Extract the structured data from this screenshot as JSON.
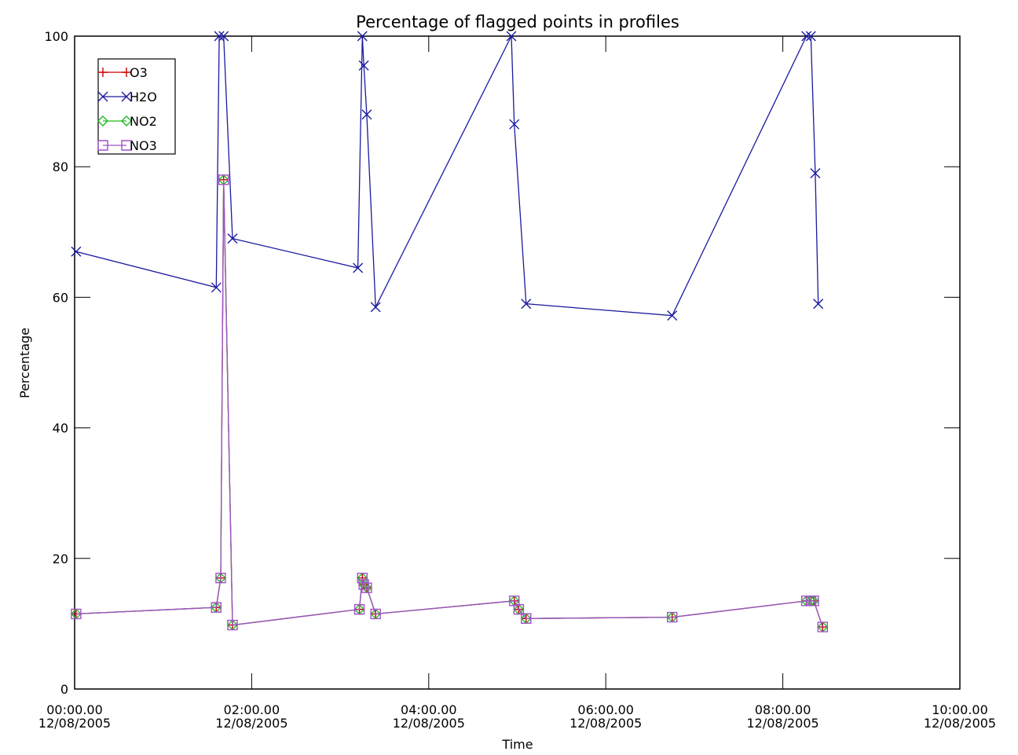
{
  "chart_data": {
    "type": "line",
    "title": "Percentage of flagged points in profiles",
    "xlabel": "Time",
    "ylabel": "Percentage",
    "ylim": [
      0,
      100
    ],
    "xlim": [
      "2005-12-08T00:00:00",
      "2005-12-08T10:00:00"
    ],
    "grid": false,
    "legend_position": "top-left",
    "y_ticks": [
      "0",
      "20",
      "40",
      "60",
      "80",
      "100"
    ],
    "x_ticks": [
      {
        "time": "2005-12-08T00:00:00",
        "line1": "00:00.00",
        "line2": "12/08/2005"
      },
      {
        "time": "2005-12-08T02:00:00",
        "line1": "02:00.00",
        "line2": "12/08/2005"
      },
      {
        "time": "2005-12-08T04:00:00",
        "line1": "04:00.00",
        "line2": "12/08/2005"
      },
      {
        "time": "2005-12-08T06:00:00",
        "line1": "06:00.00",
        "line2": "12/08/2005"
      },
      {
        "time": "2005-12-08T08:00:00",
        "line1": "08:00.00",
        "line2": "12/08/2005"
      },
      {
        "time": "2005-12-08T10:00:00",
        "line1": "10:00.00",
        "line2": "12/08/2005"
      }
    ],
    "series": [
      {
        "name": "O3",
        "color": "#cc0000",
        "marker": "plus",
        "x": [
          "00:01",
          "01:36",
          "01:39",
          "01:41",
          "01:47",
          "03:13",
          "03:15",
          "03:16",
          "03:18",
          "03:24",
          "04:58",
          "05:01",
          "05:06",
          "06:45",
          "08:16",
          "08:19",
          "08:21",
          "08:27"
        ],
        "y": [
          11.5,
          12.5,
          17,
          78,
          9.8,
          12.2,
          17,
          16,
          15.5,
          11.5,
          13.5,
          12.2,
          10.8,
          11,
          13.5,
          13.5,
          13.5,
          9.5
        ]
      },
      {
        "name": "H2O",
        "color": "#1a1a9e",
        "marker": "x",
        "x": [
          "00:01",
          "01:36",
          "01:38",
          "01:41",
          "01:47",
          "03:12",
          "03:15",
          "03:16",
          "03:18",
          "03:24",
          "04:56",
          "04:58",
          "05:06",
          "06:45",
          "08:16",
          "08:19",
          "08:22",
          "08:24"
        ],
        "y": [
          67,
          61.5,
          100,
          100,
          69,
          64.5,
          100,
          95.5,
          88,
          58.5,
          100,
          86.5,
          59,
          57.2,
          100,
          100,
          79,
          59
        ]
      },
      {
        "name": "NO2",
        "color": "#22bb22",
        "marker": "diamond",
        "x": [
          "00:01",
          "01:36",
          "01:39",
          "01:41",
          "01:47",
          "03:13",
          "03:15",
          "03:16",
          "03:18",
          "03:24",
          "04:58",
          "05:01",
          "05:06",
          "06:45",
          "08:16",
          "08:19",
          "08:21",
          "08:27"
        ],
        "y": [
          11.5,
          12.5,
          17,
          78,
          9.8,
          12.2,
          17,
          16,
          15.5,
          11.5,
          13.5,
          12.2,
          10.8,
          11,
          13.5,
          13.5,
          13.5,
          9.5
        ]
      },
      {
        "name": "NO3",
        "color": "#a050c8",
        "marker": "square",
        "x": [
          "00:01",
          "01:36",
          "01:39",
          "01:41",
          "01:47",
          "03:13",
          "03:15",
          "03:16",
          "03:18",
          "03:24",
          "04:58",
          "05:01",
          "05:06",
          "06:45",
          "08:16",
          "08:19",
          "08:21",
          "08:27"
        ],
        "y": [
          11.5,
          12.5,
          17,
          78,
          9.8,
          12.2,
          17,
          16,
          15.5,
          11.5,
          13.5,
          12.2,
          10.8,
          11,
          13.5,
          13.5,
          13.5,
          9.5
        ]
      }
    ]
  }
}
